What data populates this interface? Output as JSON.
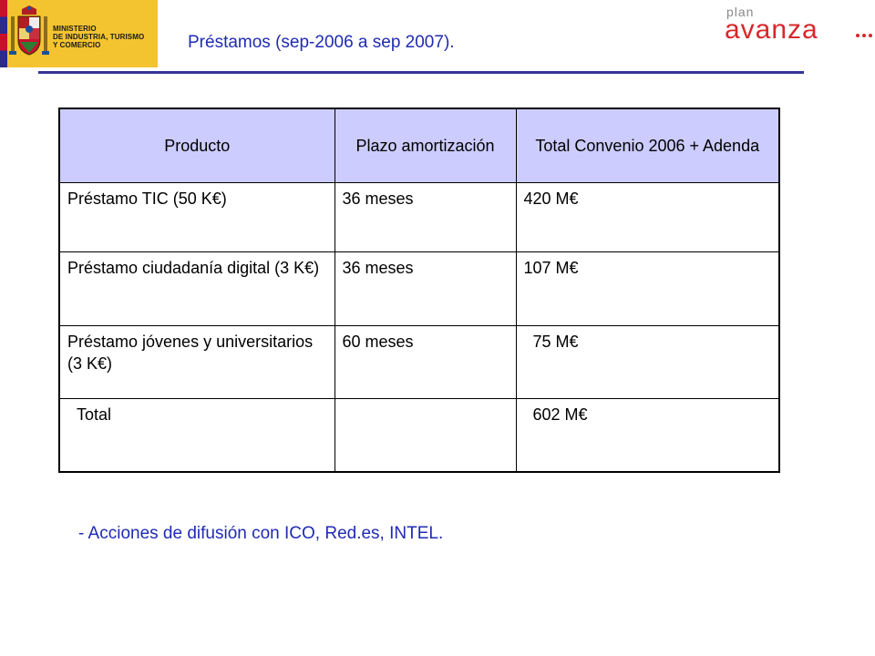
{
  "header": {
    "ministry_lines": [
      "MINISTERIO",
      "DE INDUSTRIA, TURISMO",
      "Y COMERCIO"
    ],
    "title": "Préstamos (sep-2006 a sep 2007).",
    "plan_logo_small": "plan",
    "plan_logo_main": "avanza"
  },
  "table": {
    "headers": [
      "Producto",
      "Plazo amortización",
      "Total Convenio 2006 + Adenda"
    ],
    "rows": [
      [
        "Préstamo TIC (50 K€)",
        "36 meses",
        "420 M€"
      ],
      [
        "Préstamo ciudadanía digital (3 K€)",
        "36 meses",
        "107 M€"
      ],
      [
        "Préstamo jóvenes y universitarios (3 K€)",
        "60 meses",
        "75 M€"
      ]
    ],
    "total_label": "Total",
    "total_value": "602 M€"
  },
  "footnote": "- Acciones de difusión con ICO, Red.es, INTEL.",
  "colors": {
    "title_blue": "#1f2bb3",
    "header_fill": "#ccccff",
    "logo_yellow": "#f4c430",
    "avanza_red": "#d8282b",
    "rule": "#333399"
  }
}
